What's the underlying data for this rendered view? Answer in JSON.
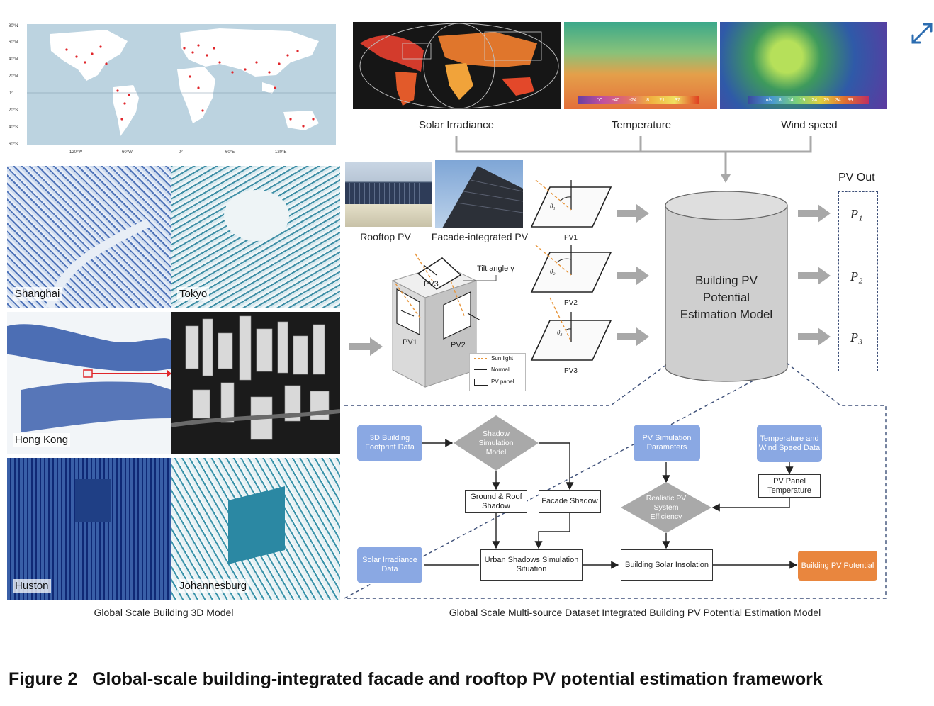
{
  "left": {
    "map": {
      "lat_labels": [
        "80°N",
        "60°N",
        "40°N",
        "20°N",
        "0°",
        "20°S",
        "40°S",
        "60°S"
      ],
      "lon_labels": [
        "120°W",
        "60°W",
        "0°",
        "60°E",
        "120°E"
      ]
    },
    "cities": [
      "Shanghai",
      "Tokyo",
      "Hong Kong",
      "Huston",
      "Johannesburg"
    ],
    "caption": "Global Scale Building 3D Model"
  },
  "weather": {
    "labels": [
      "Solar Irradiance",
      "Temperature",
      "Wind speed"
    ],
    "temp_scale": [
      "°C",
      "-40",
      "-24",
      "8",
      "21",
      "37"
    ],
    "wind_scale": [
      "m/s",
      "8",
      "14",
      "19",
      "24",
      "29",
      "34",
      "39"
    ]
  },
  "pv_types": {
    "rooftop": "Rooftop PV",
    "facade": "Facade-integrated PV",
    "tilt_label": "Tilt angle γ",
    "cube_panels": [
      "PV3",
      "PV1",
      "PV2"
    ],
    "legend": [
      "Sun light",
      "Normal",
      "PV panel"
    ],
    "panels": [
      {
        "label": "PV1",
        "theta": "θ₁"
      },
      {
        "label": "PV2",
        "theta": "θ₂"
      },
      {
        "label": "PV3",
        "theta": "θ₃"
      }
    ]
  },
  "model": {
    "title": "Building PV Potential Estimation Model",
    "line1": "Building PV",
    "line2": "Potential",
    "line3": "Estimation Model"
  },
  "pv_out": {
    "label": "PV Out",
    "items": [
      "P₁",
      "P₂",
      "P₃"
    ]
  },
  "flowchart": {
    "footprint": "3D Building Footprint Data",
    "shadow_model": "Shadow Simulation Model",
    "ground_roof": "Ground & Roof Shadow",
    "facade_shadow": "Facade Shadow",
    "solar_data": "Solar Irradiance Data",
    "urban_shadows": "Urban Shadows Simulation Situation",
    "pv_params": "PV Simulation Parameters",
    "efficiency": "Realistic PV System Efficiency",
    "temp_wind": "Temperature and Wind Speed Data",
    "panel_temp": "PV Panel Temperature",
    "insolation": "Building Solar Insolation",
    "potential": "Building PV Potential"
  },
  "right_caption": "Global Scale Multi-source Dataset Integrated Building PV Potential Estimation Model",
  "figure_title": "Figure 2   Global-scale building-integrated facade and rooftop PV potential estimation framework",
  "colors": {
    "flow_blue": "#8aa8e3",
    "flow_orange": "#e9863e",
    "arrow_grey": "#a8a8a8",
    "diamond_grey": "#a9a9a9",
    "sun_orange": "#e8953a",
    "dash_navy": "#3d4f78",
    "expand_icon": "#2b6cb0"
  }
}
